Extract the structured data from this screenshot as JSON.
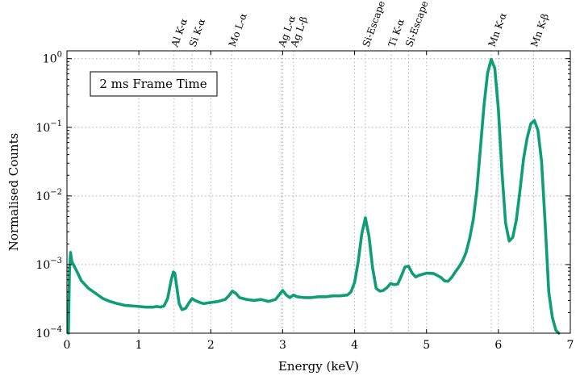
{
  "chart_data": {
    "type": "line",
    "title": "",
    "xlabel": "Energy (keV)",
    "ylabel": "Normalised Counts",
    "xlim": [
      0,
      7
    ],
    "ylim": [
      0.0001,
      1.3
    ],
    "yscale": "log",
    "grid": true,
    "x_ticks": [
      0,
      1,
      2,
      3,
      4,
      5,
      6,
      7
    ],
    "x_tick_labels": [
      "0",
      "1",
      "2",
      "3",
      "4",
      "5",
      "6",
      "7"
    ],
    "y_ticks": [
      0.0001,
      0.001,
      0.01,
      0.1,
      1
    ],
    "y_tick_labels": [
      {
        "base": "10",
        "exp": "−4"
      },
      {
        "base": "10",
        "exp": "−3"
      },
      {
        "base": "10",
        "exp": "−2"
      },
      {
        "base": "10",
        "exp": "−1"
      },
      {
        "base": "10",
        "exp": "0"
      }
    ],
    "annotation": "2 ms Frame Time",
    "line_color": "#0f9d78",
    "peak_markers": [
      {
        "label": "Al K-α",
        "energy": 1.49
      },
      {
        "label": "Si K-α",
        "energy": 1.74
      },
      {
        "label": "Mo L-α",
        "energy": 2.29
      },
      {
        "label": "Ag L-α",
        "energy": 2.98
      },
      {
        "label": "Ag L-β",
        "energy": 3.15
      },
      {
        "label": "Si-Escape",
        "energy": 4.15
      },
      {
        "label": "Ti K-α",
        "energy": 4.51
      },
      {
        "label": "Si-Escape",
        "energy": 4.75
      },
      {
        "label": "Mn K-α",
        "energy": 5.9
      },
      {
        "label": "Mn K-β",
        "energy": 6.49
      }
    ],
    "series": [
      {
        "x": [
          0.02,
          0.035,
          0.05,
          0.06,
          0.07,
          0.1,
          0.15,
          0.2,
          0.3,
          0.4,
          0.5,
          0.6,
          0.7,
          0.8,
          0.9,
          1.0,
          1.1,
          1.2,
          1.25,
          1.3,
          1.35,
          1.4,
          1.45,
          1.48,
          1.5,
          1.53,
          1.56,
          1.6,
          1.65,
          1.7,
          1.74,
          1.78,
          1.85,
          1.9,
          2.0,
          2.1,
          2.2,
          2.25,
          2.3,
          2.35,
          2.4,
          2.5,
          2.6,
          2.7,
          2.8,
          2.9,
          2.95,
          3.0,
          3.05,
          3.1,
          3.15,
          3.2,
          3.3,
          3.4,
          3.5,
          3.6,
          3.7,
          3.8,
          3.9,
          3.95,
          4.0,
          4.05,
          4.1,
          4.15,
          4.2,
          4.25,
          4.3,
          4.35,
          4.4,
          4.45,
          4.5,
          4.55,
          4.6,
          4.65,
          4.7,
          4.75,
          4.8,
          4.85,
          4.9,
          5.0,
          5.1,
          5.2,
          5.25,
          5.3,
          5.35,
          5.4,
          5.45,
          5.5,
          5.55,
          5.6,
          5.65,
          5.7,
          5.75,
          5.8,
          5.85,
          5.9,
          5.95,
          6.0,
          6.05,
          6.1,
          6.15,
          6.2,
          6.25,
          6.3,
          6.35,
          6.4,
          6.45,
          6.5,
          6.55,
          6.6,
          6.65,
          6.7,
          6.75,
          6.8,
          6.84
        ],
        "y": [
          0.0001,
          0.0008,
          0.0015,
          0.00125,
          0.0011,
          0.00095,
          0.00075,
          0.00058,
          0.00045,
          0.00038,
          0.00032,
          0.00029,
          0.00027,
          0.000255,
          0.00025,
          0.000245,
          0.00024,
          0.00024,
          0.000245,
          0.00024,
          0.00025,
          0.00032,
          0.0006,
          0.00078,
          0.00075,
          0.00045,
          0.00027,
          0.00022,
          0.00023,
          0.00028,
          0.00032,
          0.0003,
          0.00028,
          0.00027,
          0.00028,
          0.00029,
          0.00031,
          0.00035,
          0.00041,
          0.00038,
          0.00033,
          0.00031,
          0.0003,
          0.00031,
          0.00029,
          0.00031,
          0.00036,
          0.00042,
          0.00036,
          0.00033,
          0.00036,
          0.00034,
          0.00033,
          0.00033,
          0.00034,
          0.00034,
          0.00035,
          0.00035,
          0.00036,
          0.0004,
          0.00055,
          0.0011,
          0.0028,
          0.0048,
          0.0026,
          0.0009,
          0.00045,
          0.00041,
          0.00042,
          0.00046,
          0.00053,
          0.00051,
          0.00052,
          0.00068,
          0.00092,
          0.00095,
          0.00075,
          0.00066,
          0.0007,
          0.00075,
          0.00074,
          0.00065,
          0.00058,
          0.00057,
          0.00065,
          0.00078,
          0.00092,
          0.00112,
          0.0015,
          0.0024,
          0.0045,
          0.012,
          0.05,
          0.21,
          0.62,
          0.98,
          0.72,
          0.18,
          0.022,
          0.004,
          0.0022,
          0.0025,
          0.0045,
          0.012,
          0.035,
          0.07,
          0.112,
          0.126,
          0.09,
          0.032,
          0.004,
          0.0004,
          0.00017,
          0.00011,
          0.0001
        ]
      }
    ]
  }
}
